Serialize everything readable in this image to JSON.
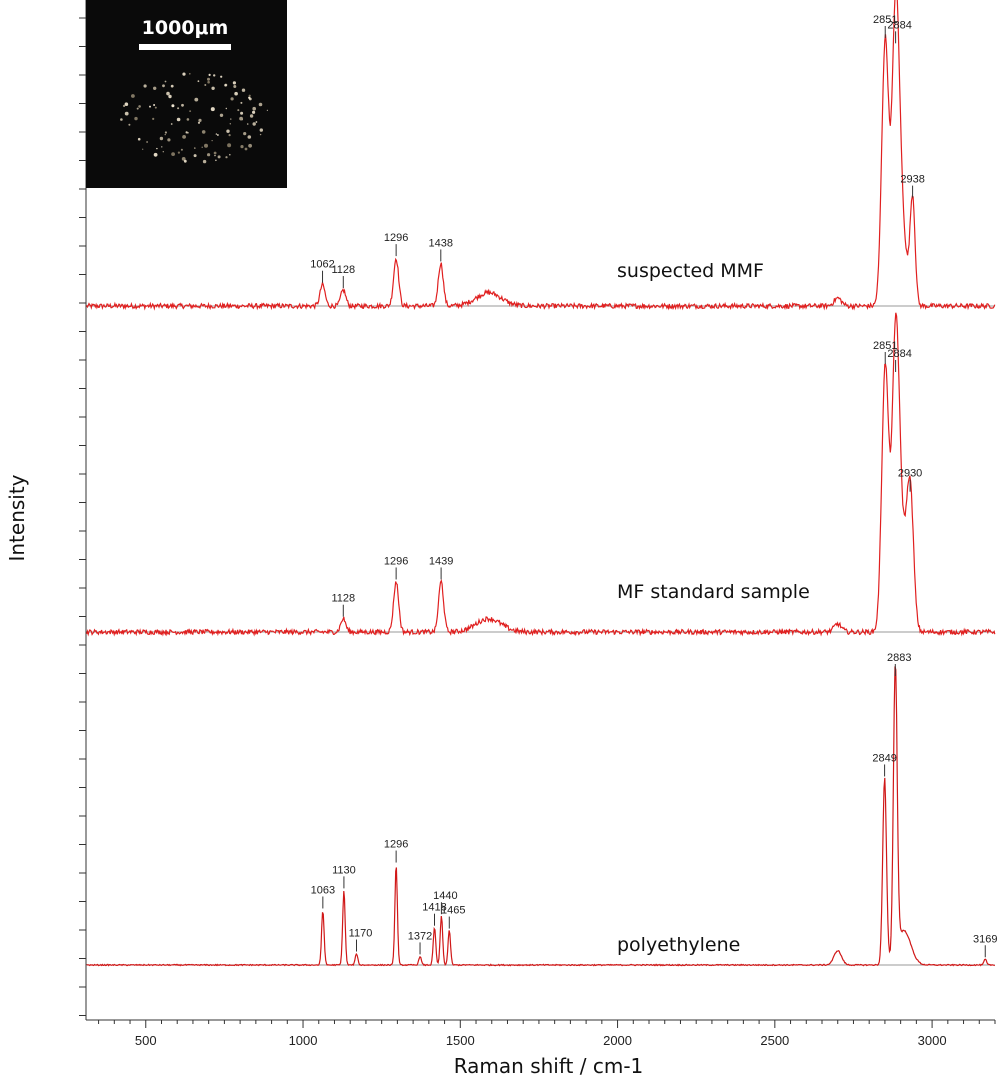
{
  "chart_data": {
    "type": "line",
    "xlabel": "Raman shift / cm-1",
    "ylabel": "Intensity",
    "xlim": [
      310,
      3200
    ],
    "x_ticks": [
      500,
      1000,
      1500,
      2000,
      2500,
      3000
    ],
    "grid": false,
    "legend": "none",
    "inset": {
      "scale_bar": "1000μm"
    },
    "series": [
      {
        "name": "suspected MMF",
        "color": "#e02020",
        "peaks": [
          {
            "x": 1062,
            "h": 0.08,
            "label": "1062"
          },
          {
            "x": 1128,
            "h": 0.06,
            "label": "1128"
          },
          {
            "x": 1296,
            "h": 0.18,
            "label": "1296"
          },
          {
            "x": 1438,
            "h": 0.16,
            "label": "1438"
          },
          {
            "x": 2851,
            "h": 1.0,
            "label": "2851"
          },
          {
            "x": 2884,
            "h": 0.98,
            "label": "2884"
          },
          {
            "x": 2938,
            "h": 0.4,
            "label": "2938"
          }
        ]
      },
      {
        "name": "MF standard sample",
        "color": "#e02020",
        "peaks": [
          {
            "x": 1128,
            "h": 0.05,
            "label": "1128"
          },
          {
            "x": 1296,
            "h": 0.19,
            "label": "1296"
          },
          {
            "x": 1439,
            "h": 0.19,
            "label": "1439"
          },
          {
            "x": 2851,
            "h": 1.0,
            "label": "2851"
          },
          {
            "x": 2884,
            "h": 0.97,
            "label": "2884"
          },
          {
            "x": 2930,
            "h": 0.52,
            "label": "2930"
          }
        ]
      },
      {
        "name": "polyethylene",
        "color": "#d01818",
        "peaks": [
          {
            "x": 1063,
            "h": 0.19,
            "label": "1063"
          },
          {
            "x": 1130,
            "h": 0.26,
            "label": "1130"
          },
          {
            "x": 1170,
            "h": 0.04,
            "label": "1170"
          },
          {
            "x": 1296,
            "h": 0.35,
            "label": "1296"
          },
          {
            "x": 1372,
            "h": 0.03,
            "label": "1372"
          },
          {
            "x": 1418,
            "h": 0.13,
            "label": "1418"
          },
          {
            "x": 1440,
            "h": 0.17,
            "label": "1440"
          },
          {
            "x": 1465,
            "h": 0.12,
            "label": "1465"
          },
          {
            "x": 2849,
            "h": 0.65,
            "label": "2849"
          },
          {
            "x": 2883,
            "h": 1.0,
            "label": "2883"
          },
          {
            "x": 3169,
            "h": 0.02,
            "label": "3169"
          }
        ]
      }
    ]
  }
}
